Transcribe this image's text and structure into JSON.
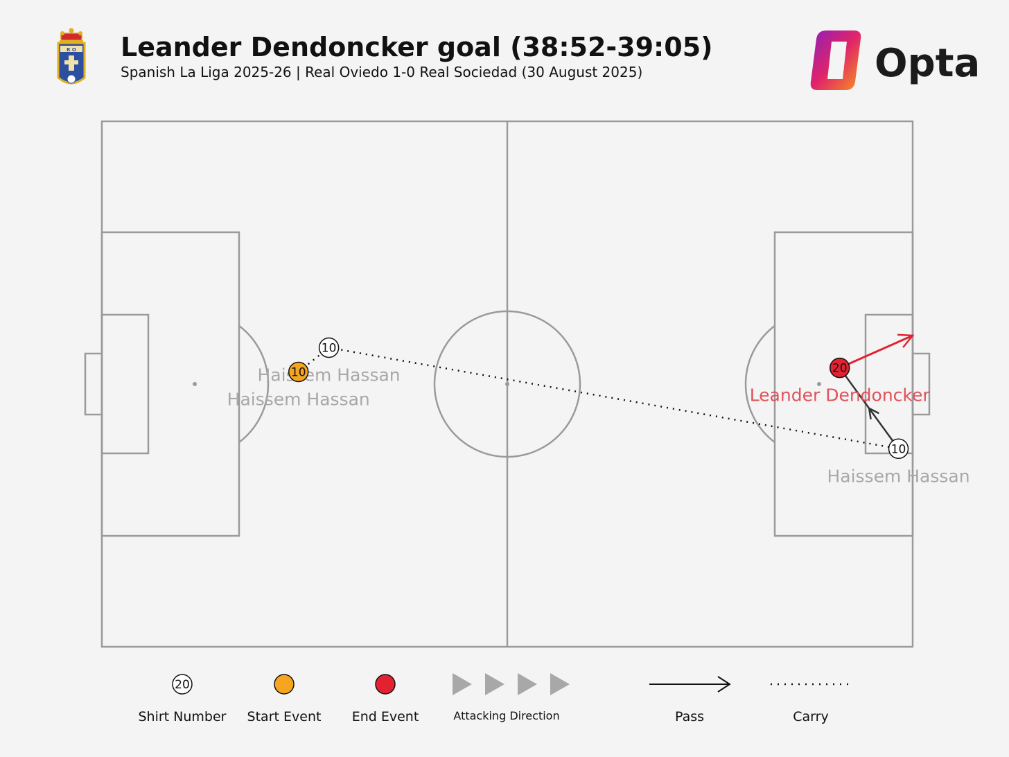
{
  "header": {
    "title": "Leander Dendoncker goal (38:52-39:05)",
    "subtitle": "Spanish La Liga 2025-26 | Real Oviedo 1-0 Real Sociedad (30 August 2025)",
    "brand": "Opta",
    "team_badge_letters": "R O"
  },
  "colors": {
    "start_event": "#f5a51f",
    "end_event": "#e32231",
    "pass": "#333333",
    "shot": "#e32231",
    "pitch_line": "#9a9a9a",
    "label_grey": "#a8a8a8",
    "label_red": "#e0525c"
  },
  "events": [
    {
      "player": "Haissem Hassan",
      "shirt": "10",
      "x": 48.5,
      "y": 62,
      "type": "start",
      "label_color": "grey"
    },
    {
      "player": "Haissem Hassan",
      "shirt": "10",
      "x": 56,
      "y": 56,
      "type": "carry_point",
      "label_color": "grey"
    },
    {
      "player": "Haissem Hassan",
      "shirt": "10",
      "x": 196.5,
      "y": 81,
      "type": "carry_point",
      "label_color": "grey"
    },
    {
      "player": "Leander Dendoncker",
      "shirt": "20",
      "x": 182,
      "y": 61,
      "type": "end",
      "label_color": "red"
    }
  ],
  "actions": [
    {
      "type": "carry",
      "from": [
        48.5,
        62
      ],
      "to": [
        56,
        56
      ]
    },
    {
      "type": "carry",
      "from": [
        56,
        56
      ],
      "to": [
        196.5,
        81
      ]
    },
    {
      "type": "pass",
      "from": [
        196.5,
        81
      ],
      "to": [
        182,
        61
      ]
    },
    {
      "type": "shot",
      "from": [
        182,
        61
      ],
      "to": [
        200,
        53
      ]
    }
  ],
  "legend": {
    "shirt_number": {
      "sample": "20",
      "label": "Shirt Number"
    },
    "start_event": {
      "label": "Start Event"
    },
    "end_event": {
      "label": "End Event"
    },
    "attacking_direction": {
      "label": "Attacking Direction"
    },
    "pass": {
      "label": "Pass"
    },
    "carry": {
      "label": "Carry"
    }
  }
}
